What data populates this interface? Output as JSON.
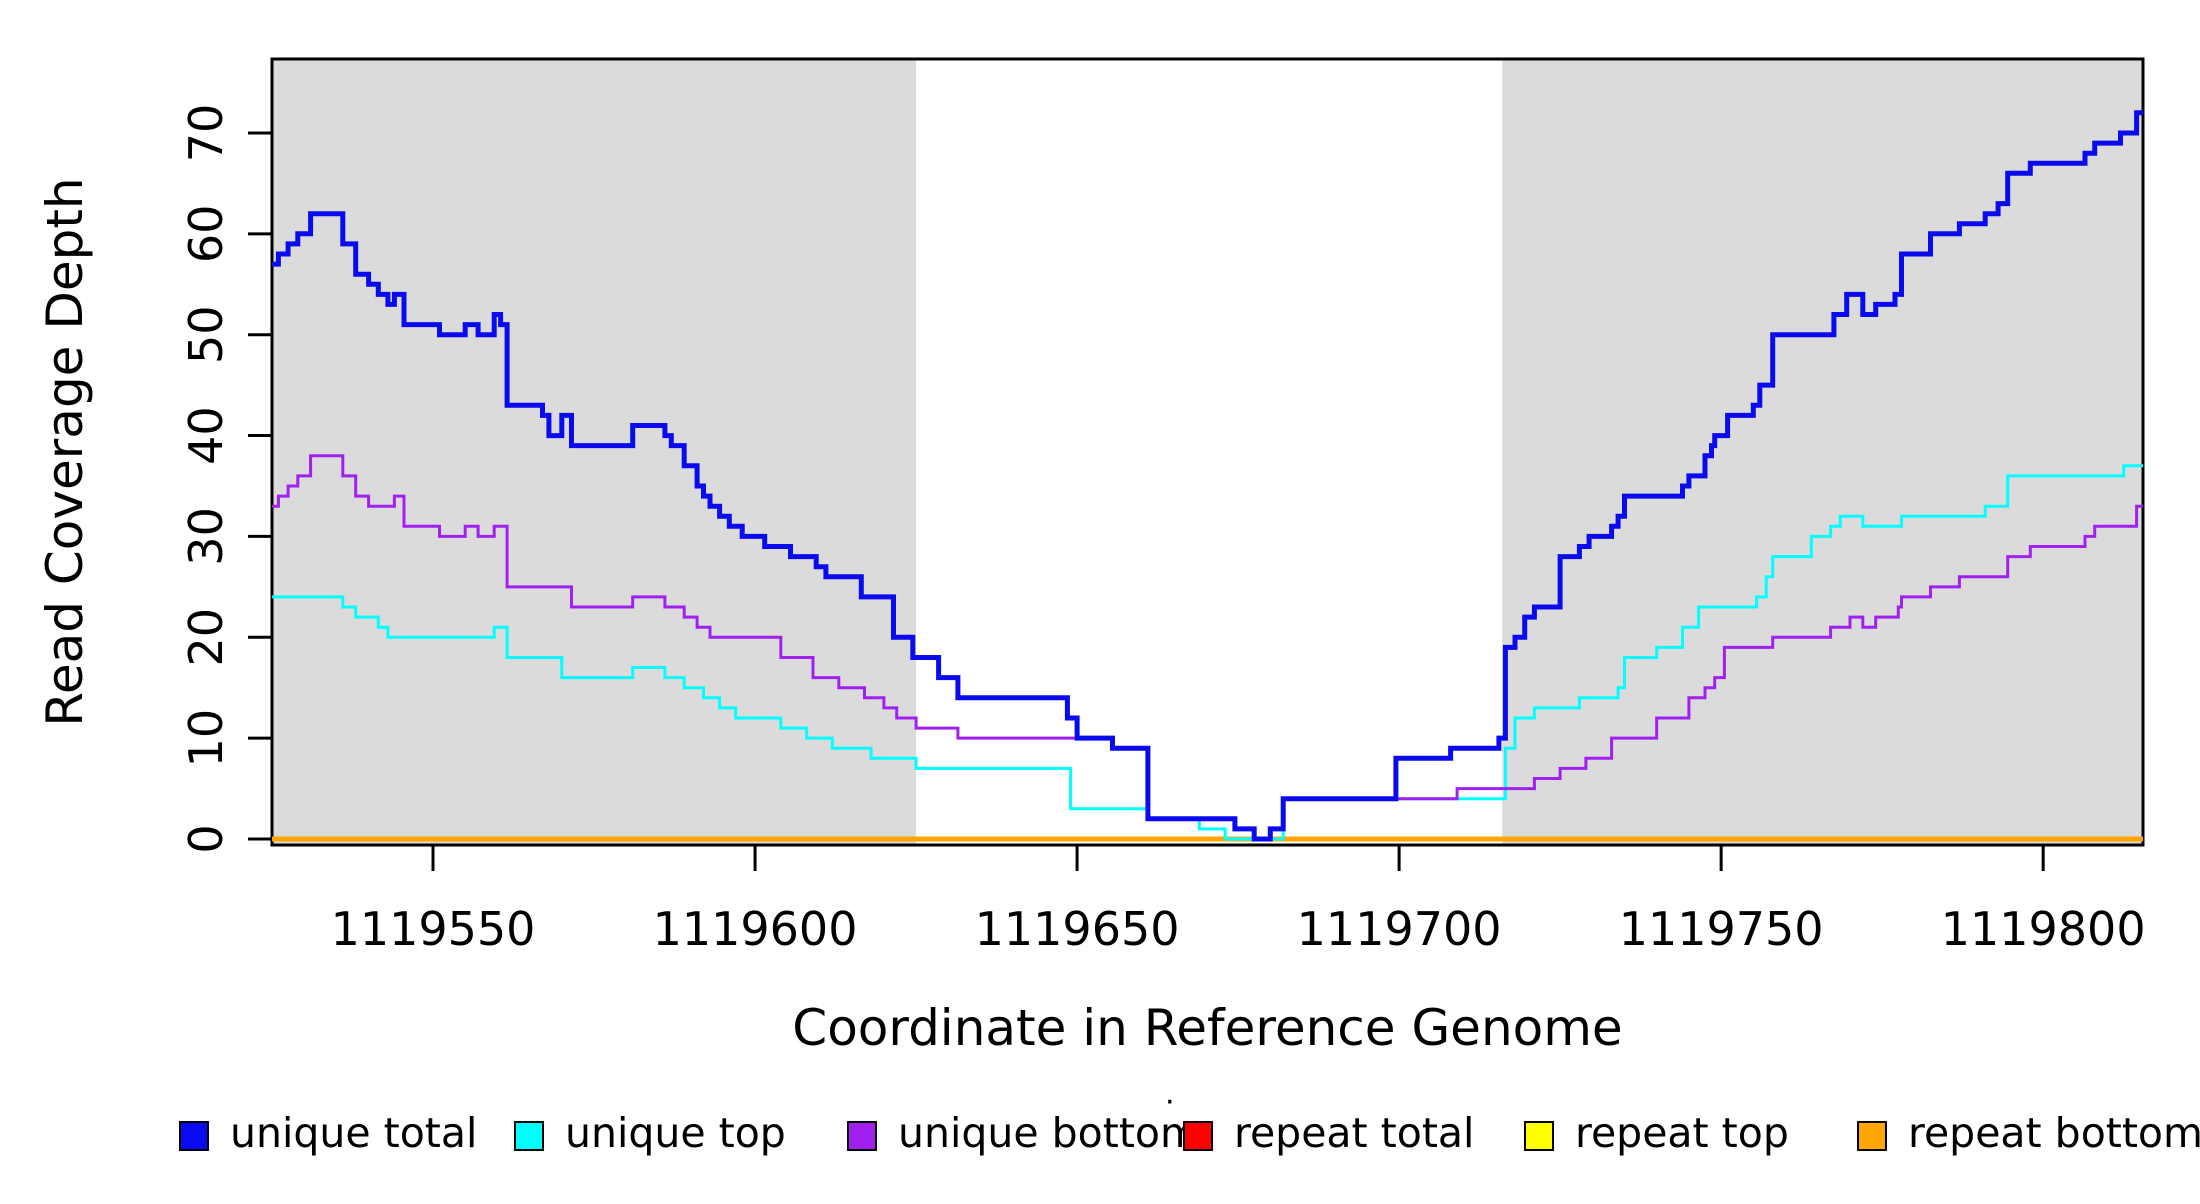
{
  "chart_data": {
    "type": "line",
    "subtype": "step-after",
    "title": "",
    "xlabel": "Coordinate in Reference Genome",
    "ylabel": "Read Coverage Depth",
    "xlim": [
      1119525,
      1119815.5
    ],
    "ylim": [
      0,
      77
    ],
    "grid": false,
    "legend_position": "bottom",
    "x_ticks": {
      "values": [
        1119550,
        1119600,
        1119650,
        1119700,
        1119750,
        1119800
      ],
      "labels": [
        "1119550",
        "1119600",
        "1119650",
        "1119700",
        "1119750",
        "1119800"
      ]
    },
    "y_ticks": {
      "values": [
        0,
        10,
        20,
        30,
        40,
        50,
        60,
        70
      ],
      "labels": [
        "0",
        "10",
        "20",
        "30",
        "40",
        "50",
        "60",
        "70"
      ]
    },
    "shaded_regions": [
      {
        "name": "left-repeat-flank",
        "x0": 1119525,
        "x1": 1119625,
        "color": "#DBDBDB"
      },
      {
        "name": "right-repeat-flank",
        "x0": 1119716,
        "x1": 1119815.5,
        "color": "#DBDBDB"
      }
    ],
    "series": [
      {
        "name": "repeat top",
        "color": "#FFFF00",
        "width": 3,
        "points": [
          [
            1119525,
            0
          ]
        ]
      },
      {
        "name": "repeat total",
        "color": "#FF0000",
        "width": 3,
        "points": [
          [
            1119525,
            0
          ]
        ]
      },
      {
        "name": "repeat bottom",
        "color": "#FFA500",
        "width": 5,
        "points": [
          [
            1119525,
            0
          ]
        ]
      },
      {
        "name": "unique top",
        "color": "#00FFFF",
        "width": 3,
        "points": [
          [
            1119525,
            24
          ],
          [
            1119536,
            23
          ],
          [
            1119538,
            22
          ],
          [
            1119541.5,
            21
          ],
          [
            1119543,
            20
          ],
          [
            1119559.5,
            21
          ],
          [
            1119561.5,
            18
          ],
          [
            1119570,
            16
          ],
          [
            1119581,
            17
          ],
          [
            1119586,
            16
          ],
          [
            1119589,
            15
          ],
          [
            1119592,
            14
          ],
          [
            1119594.5,
            13
          ],
          [
            1119597,
            12
          ],
          [
            1119604,
            11
          ],
          [
            1119608,
            10
          ],
          [
            1119612,
            9
          ],
          [
            1119618,
            8
          ],
          [
            1119625,
            7
          ],
          [
            1119649,
            3
          ],
          [
            1119661,
            2
          ],
          [
            1119669,
            1
          ],
          [
            1119673,
            0
          ],
          [
            1119682,
            4
          ],
          [
            1119716.5,
            9
          ],
          [
            1119718,
            12
          ],
          [
            1119721,
            13
          ],
          [
            1119728,
            14
          ],
          [
            1119734,
            15
          ],
          [
            1119735,
            18
          ],
          [
            1119740,
            19
          ],
          [
            1119744,
            21
          ],
          [
            1119746.5,
            23
          ],
          [
            1119755.5,
            24
          ],
          [
            1119757,
            26
          ],
          [
            1119758,
            28
          ],
          [
            1119764,
            30
          ],
          [
            1119767,
            31
          ],
          [
            1119768.5,
            32
          ],
          [
            1119772,
            31
          ],
          [
            1119778,
            32
          ],
          [
            1119791,
            33
          ],
          [
            1119794.5,
            36
          ],
          [
            1119812.5,
            37
          ]
        ]
      },
      {
        "name": "unique bottom",
        "color": "#A020F0",
        "width": 3,
        "points": [
          [
            1119525,
            33
          ],
          [
            1119526,
            34
          ],
          [
            1119527.5,
            35
          ],
          [
            1119529,
            36
          ],
          [
            1119531,
            38
          ],
          [
            1119536,
            36
          ],
          [
            1119538,
            34
          ],
          [
            1119540,
            33
          ],
          [
            1119544,
            34
          ],
          [
            1119545.5,
            31
          ],
          [
            1119551,
            30
          ],
          [
            1119555,
            31
          ],
          [
            1119557,
            30
          ],
          [
            1119559.5,
            31
          ],
          [
            1119561.5,
            25
          ],
          [
            1119571.5,
            23
          ],
          [
            1119581,
            24
          ],
          [
            1119586,
            23
          ],
          [
            1119589,
            22
          ],
          [
            1119591,
            21
          ],
          [
            1119593,
            20
          ],
          [
            1119604,
            18
          ],
          [
            1119609,
            16
          ],
          [
            1119613,
            15
          ],
          [
            1119617,
            14
          ],
          [
            1119620,
            13
          ],
          [
            1119622,
            12
          ],
          [
            1119625,
            11
          ],
          [
            1119631.5,
            10
          ],
          [
            1119655.5,
            9
          ],
          [
            1119661,
            2
          ],
          [
            1119674.5,
            1
          ],
          [
            1119677.5,
            0
          ],
          [
            1119680,
            1
          ],
          [
            1119682,
            4
          ],
          [
            1119709,
            5
          ],
          [
            1119721,
            6
          ],
          [
            1119725,
            7
          ],
          [
            1119729,
            8
          ],
          [
            1119733,
            10
          ],
          [
            1119740,
            12
          ],
          [
            1119745,
            14
          ],
          [
            1119747.5,
            15
          ],
          [
            1119749,
            16
          ],
          [
            1119750.5,
            19
          ],
          [
            1119758,
            20
          ],
          [
            1119767,
            21
          ],
          [
            1119770,
            22
          ],
          [
            1119772,
            21
          ],
          [
            1119774,
            22
          ],
          [
            1119777.5,
            23
          ],
          [
            1119778,
            24
          ],
          [
            1119782.5,
            25
          ],
          [
            1119787,
            26
          ],
          [
            1119794.5,
            28
          ],
          [
            1119798,
            29
          ],
          [
            1119806.5,
            30
          ],
          [
            1119808,
            31
          ],
          [
            1119814.5,
            33
          ]
        ]
      },
      {
        "name": "unique total",
        "color": "#0A0AEE",
        "width": 5,
        "points": [
          [
            1119525,
            57
          ],
          [
            1119526,
            58
          ],
          [
            1119527.5,
            59
          ],
          [
            1119529,
            60
          ],
          [
            1119531,
            62
          ],
          [
            1119536,
            59
          ],
          [
            1119538,
            56
          ],
          [
            1119540,
            55
          ],
          [
            1119541.5,
            54
          ],
          [
            1119543,
            53
          ],
          [
            1119544,
            54
          ],
          [
            1119545.5,
            51
          ],
          [
            1119551,
            50
          ],
          [
            1119555,
            51
          ],
          [
            1119557,
            50
          ],
          [
            1119559.5,
            52
          ],
          [
            1119560.5,
            51
          ],
          [
            1119561.5,
            43
          ],
          [
            1119567,
            42
          ],
          [
            1119568,
            40
          ],
          [
            1119570,
            42
          ],
          [
            1119571.5,
            39
          ],
          [
            1119581,
            41
          ],
          [
            1119586,
            40
          ],
          [
            1119587,
            39
          ],
          [
            1119589,
            37
          ],
          [
            1119591,
            35
          ],
          [
            1119592,
            34
          ],
          [
            1119593,
            33
          ],
          [
            1119594.5,
            32
          ],
          [
            1119596,
            31
          ],
          [
            1119598,
            30
          ],
          [
            1119601.5,
            29
          ],
          [
            1119605.5,
            28
          ],
          [
            1119609.5,
            27
          ],
          [
            1119611,
            26
          ],
          [
            1119616.5,
            24
          ],
          [
            1119621.5,
            20
          ],
          [
            1119624.5,
            18
          ],
          [
            1119628.5,
            16
          ],
          [
            1119631.5,
            14
          ],
          [
            1119648.5,
            12
          ],
          [
            1119650,
            10
          ],
          [
            1119655.5,
            9
          ],
          [
            1119661,
            2
          ],
          [
            1119674.5,
            1
          ],
          [
            1119677.5,
            0
          ],
          [
            1119680,
            1
          ],
          [
            1119682,
            4
          ],
          [
            1119699.5,
            8
          ],
          [
            1119708,
            9
          ],
          [
            1119715.5,
            10
          ],
          [
            1119716.5,
            19
          ],
          [
            1119718,
            20
          ],
          [
            1119719.5,
            22
          ],
          [
            1119721,
            23
          ],
          [
            1119725,
            28
          ],
          [
            1119728,
            29
          ],
          [
            1119729.5,
            30
          ],
          [
            1119733,
            31
          ],
          [
            1119734,
            32
          ],
          [
            1119735,
            34
          ],
          [
            1119744,
            35
          ],
          [
            1119745,
            36
          ],
          [
            1119747.5,
            38
          ],
          [
            1119748.5,
            39
          ],
          [
            1119749,
            40
          ],
          [
            1119751,
            42
          ],
          [
            1119755,
            43
          ],
          [
            1119756,
            45
          ],
          [
            1119758,
            50
          ],
          [
            1119767.5,
            52
          ],
          [
            1119769.5,
            54
          ],
          [
            1119772,
            52
          ],
          [
            1119774,
            53
          ],
          [
            1119777,
            54
          ],
          [
            1119778,
            58
          ],
          [
            1119782.5,
            60
          ],
          [
            1119787,
            61
          ],
          [
            1119791,
            62
          ],
          [
            1119793,
            63
          ],
          [
            1119794.5,
            66
          ],
          [
            1119798,
            67
          ],
          [
            1119806.5,
            68
          ],
          [
            1119808,
            69
          ],
          [
            1119812,
            70
          ],
          [
            1119814.5,
            72
          ]
        ]
      }
    ]
  },
  "legend": {
    "items": [
      {
        "label": "unique total",
        "color": "#0A0AEE"
      },
      {
        "label": "unique top",
        "color": "#00FFFF"
      },
      {
        "label": "unique bottom",
        "color": "#A020F0"
      },
      {
        "label": "repeat total",
        "color": "#FF0000"
      },
      {
        "label": "repeat top",
        "color": "#FFFF00"
      },
      {
        "label": "repeat bottom",
        "color": "#FFA500"
      }
    ],
    "stray_dot": "·"
  }
}
